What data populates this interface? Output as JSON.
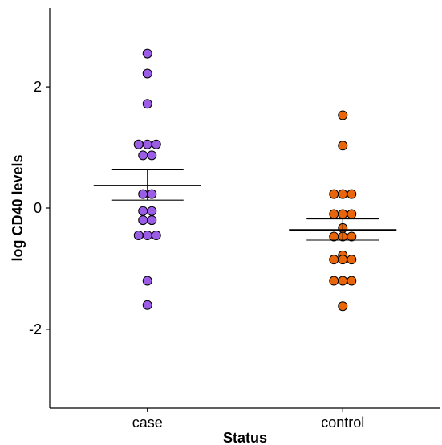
{
  "chart_data": {
    "type": "scatter",
    "subtype": "dot-strip with mean and standard-error bars",
    "title": "",
    "xlabel": "Status",
    "ylabel": "log CD40 levels",
    "categories": [
      "case",
      "control"
    ],
    "ylim": [
      -3.3,
      3.3
    ],
    "yticks": [
      -2,
      0,
      2
    ],
    "ytick_labels": [
      "-2",
      "0",
      "2"
    ],
    "grid": false,
    "legend": "none",
    "series": [
      {
        "category": "case",
        "color": "#9b5de5",
        "values": [
          2.55,
          2.22,
          1.72,
          1.05,
          1.05,
          1.05,
          0.87,
          0.87,
          0.23,
          0.23,
          -0.05,
          -0.05,
          -0.2,
          -0.2,
          -0.45,
          -0.45,
          -0.45,
          -1.2,
          -1.6
        ],
        "mean": 0.37,
        "se_upper": 0.63,
        "se_lower": 0.13
      },
      {
        "category": "control",
        "color": "#e8650a",
        "values": [
          1.53,
          1.03,
          0.23,
          0.23,
          0.23,
          -0.1,
          -0.1,
          -0.1,
          -0.33,
          -0.47,
          -0.47,
          -0.47,
          -0.78,
          -0.85,
          -0.85,
          -0.85,
          -1.2,
          -1.2,
          -1.2,
          -1.62
        ],
        "mean": -0.36,
        "se_upper": -0.18,
        "se_lower": -0.53
      }
    ]
  }
}
